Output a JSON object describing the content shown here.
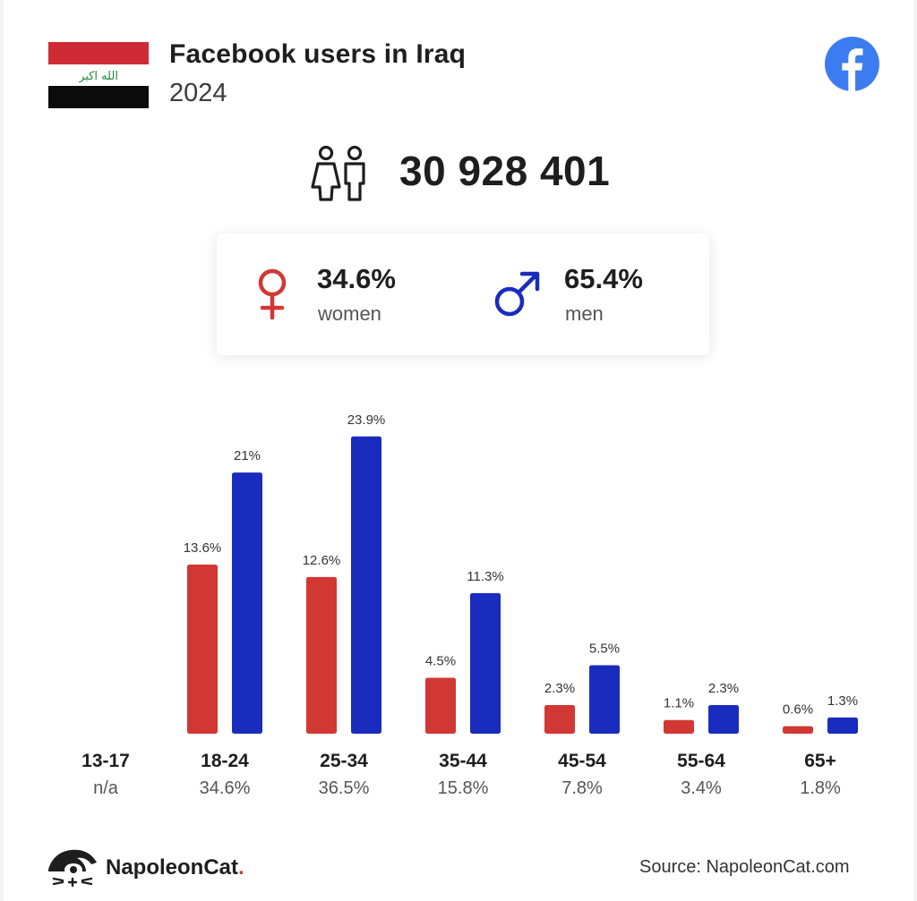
{
  "header": {
    "title": "Facebook users in Iraq",
    "year": "2024",
    "flag_script": "الله اكبر"
  },
  "summary": {
    "total_users": "30 928 401",
    "women": {
      "pct": "34.6%",
      "label": "women"
    },
    "men": {
      "pct": "65.4%",
      "label": "men"
    }
  },
  "colors": {
    "women": "#d13834",
    "men": "#1a2cbd",
    "facebook": "#3b7df0"
  },
  "chart_data": {
    "type": "bar",
    "title": "",
    "xlabel": "",
    "ylabel": "",
    "ylim": [
      0,
      25
    ],
    "categories": [
      "13-17",
      "18-24",
      "25-34",
      "35-44",
      "45-54",
      "55-64",
      "65+"
    ],
    "category_totals": [
      "n/a",
      "34.6%",
      "36.5%",
      "15.8%",
      "7.8%",
      "3.4%",
      "1.8%"
    ],
    "series": [
      {
        "key": "women",
        "values": [
          null,
          13.6,
          12.6,
          4.5,
          2.3,
          1.1,
          0.6
        ],
        "labels": [
          "",
          "13.6%",
          "12.6%",
          "4.5%",
          "2.3%",
          "1.1%",
          "0.6%"
        ]
      },
      {
        "key": "men",
        "values": [
          null,
          21,
          23.9,
          11.3,
          5.5,
          2.3,
          1.3
        ],
        "labels": [
          "",
          "21%",
          "23.9%",
          "11.3%",
          "5.5%",
          "2.3%",
          "1.3%"
        ]
      }
    ],
    "legend": "none",
    "grid": false
  },
  "footer": {
    "brand": "NapoleonCat",
    "brand_dot": ".",
    "source": "Source: NapoleonCat.com"
  }
}
